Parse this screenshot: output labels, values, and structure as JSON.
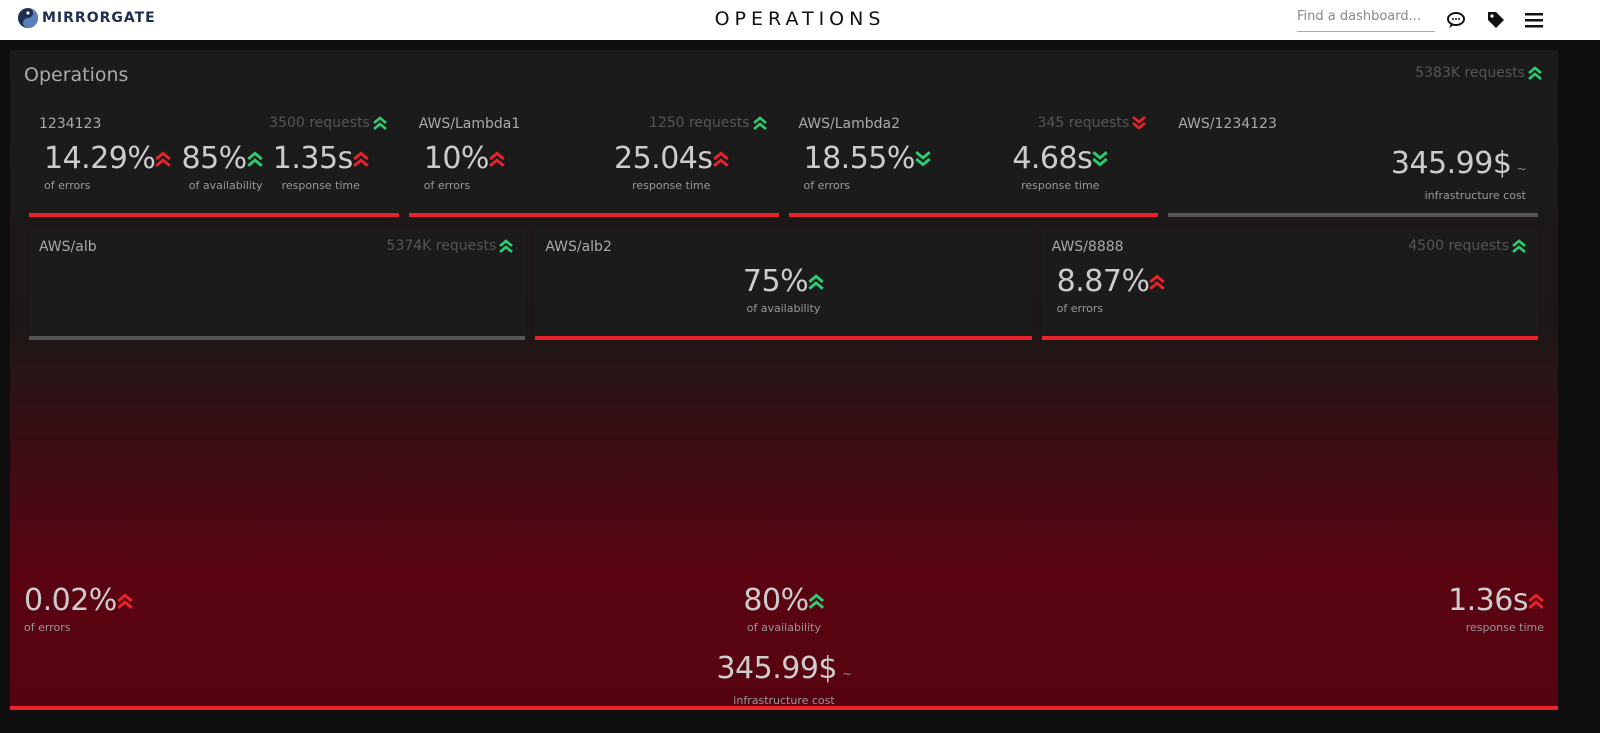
{
  "header": {
    "logo": "MIRRORGATE",
    "title": "OPERATIONS",
    "search_placeholder": "Find a dashboard..."
  },
  "panel": {
    "title": "Operations",
    "requests": "5383K requests",
    "requests_trend": "up",
    "requests_status": "good",
    "state": "error",
    "tiles": [
      {
        "name": "1234123",
        "requests": "3500 requests",
        "requests_trend": "up",
        "requests_status": "good",
        "state": "error",
        "metrics": [
          {
            "value": "14.29%",
            "label": "of errors",
            "trend": "up",
            "status": "bad"
          },
          {
            "value": "85%",
            "label": "of availability",
            "trend": "up",
            "status": "good"
          },
          {
            "value": "1.35s",
            "label": "response time",
            "trend": "up",
            "status": "bad"
          }
        ]
      },
      {
        "name": "AWS/Lambda1",
        "requests": "1250 requests",
        "requests_trend": "up",
        "requests_status": "good",
        "state": "error",
        "metrics": [
          {
            "value": "10%",
            "label": "of errors",
            "trend": "up",
            "status": "bad"
          },
          {
            "value": "25.04s",
            "label": "response time",
            "trend": "up",
            "status": "bad"
          }
        ]
      },
      {
        "name": "AWS/Lambda2",
        "requests": "345 requests",
        "requests_trend": "down",
        "requests_status": "bad",
        "state": "error",
        "metrics": [
          {
            "value": "18.55%",
            "label": "of errors",
            "trend": "down",
            "status": "good"
          },
          {
            "value": "4.68s",
            "label": "response time",
            "trend": "down",
            "status": "good"
          }
        ]
      },
      {
        "name": "AWS/1234123",
        "state": "unknown",
        "metrics": [
          {
            "value": "345.99$",
            "label": "infrastructure cost",
            "symbol": "~"
          }
        ]
      },
      {
        "name": "AWS/alb",
        "requests": "5374K requests",
        "requests_trend": "up",
        "requests_status": "good",
        "state": "unknown",
        "metrics": []
      },
      {
        "name": "AWS/alb2",
        "state": "error",
        "metrics": [
          {
            "value": "75%",
            "label": "of availability",
            "trend": "up",
            "status": "good"
          }
        ]
      },
      {
        "name": "AWS/8888",
        "requests": "4500 requests",
        "requests_trend": "up",
        "requests_status": "good",
        "state": "error",
        "metrics": [
          {
            "value": "8.87%",
            "label": "of errors",
            "trend": "up",
            "status": "bad"
          }
        ]
      }
    ],
    "summary": [
      {
        "value": "0.02%",
        "label": "of errors",
        "trend": "up",
        "status": "bad"
      },
      {
        "value": "80%",
        "label": "of availability",
        "trend": "up",
        "status": "good"
      },
      {
        "value": "1.36s",
        "label": "response time",
        "trend": "up",
        "status": "bad"
      },
      {
        "value": "345.99$",
        "label": "infrastructure cost",
        "symbol": "~"
      }
    ]
  }
}
